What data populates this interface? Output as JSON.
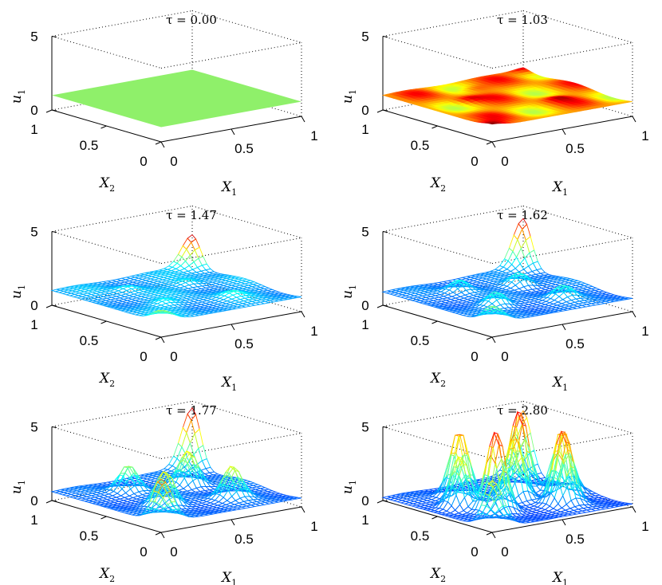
{
  "figure_description_free": true,
  "chart_data": [
    {
      "type": "surface",
      "title": "τ = 0.00",
      "tau": 0.0,
      "xlabel": "X",
      "xlabel_sub": "1",
      "ylabel": "X",
      "ylabel_sub": "2",
      "zlabel": "u",
      "zlabel_sub": "1",
      "xlim": [
        0,
        1
      ],
      "ylim": [
        0,
        1
      ],
      "zlim": [
        0,
        5
      ],
      "x_ticks": [
        "0",
        "0.5",
        "1"
      ],
      "y_ticks": [
        "0",
        "0.5",
        "1"
      ],
      "z_ticks": [
        "0",
        "5"
      ],
      "base_level": 1,
      "max_value": 1,
      "style": "flat",
      "bumps": []
    },
    {
      "type": "surface",
      "title": "τ = 1.03",
      "tau": 1.03,
      "xlabel": "X",
      "xlabel_sub": "1",
      "ylabel": "X",
      "ylabel_sub": "2",
      "zlabel": "u",
      "zlabel_sub": "1",
      "xlim": [
        0,
        1
      ],
      "ylim": [
        0,
        1
      ],
      "zlim": [
        0,
        5
      ],
      "x_ticks": [
        "0",
        "0.5",
        "1"
      ],
      "y_ticks": [
        "0",
        "0.5",
        "1"
      ],
      "z_ticks": [
        "0",
        "5"
      ],
      "base_level": 1,
      "max_value": 1.2,
      "style": "dense",
      "bumps": [
        [
          0.0,
          0.0,
          0.2
        ],
        [
          1.0,
          1.0,
          0.2
        ],
        [
          0.3,
          0.6,
          0.12
        ],
        [
          0.7,
          0.3,
          0.12
        ],
        [
          0.5,
          0.8,
          0.1
        ]
      ]
    },
    {
      "type": "surface",
      "title": "τ = 1.47",
      "tau": 1.47,
      "xlabel": "X",
      "xlabel_sub": "1",
      "ylabel": "X",
      "ylabel_sub": "2",
      "zlabel": "u",
      "zlabel_sub": "1",
      "xlim": [
        0,
        1
      ],
      "ylim": [
        0,
        1
      ],
      "zlim": [
        0,
        5
      ],
      "x_ticks": [
        "0",
        "0.5",
        "1"
      ],
      "y_ticks": [
        "0",
        "0.5",
        "1"
      ],
      "z_ticks": [
        "0",
        "5"
      ],
      "base_level": 1,
      "max_value": 3.1,
      "style": "mesh",
      "bumps": [
        [
          1.0,
          1.0,
          2.1
        ],
        [
          0.0,
          0.0,
          0.8
        ],
        [
          0.3,
          0.35,
          0.3
        ],
        [
          0.7,
          0.65,
          0.3
        ],
        [
          0.35,
          0.75,
          0.3
        ],
        [
          0.7,
          0.25,
          0.3
        ]
      ]
    },
    {
      "type": "surface",
      "title": "τ = 1.62",
      "tau": 1.62,
      "xlabel": "X",
      "xlabel_sub": "1",
      "ylabel": "X",
      "ylabel_sub": "2",
      "zlabel": "u",
      "zlabel_sub": "1",
      "xlim": [
        0,
        1
      ],
      "ylim": [
        0,
        1
      ],
      "zlim": [
        0,
        5
      ],
      "x_ticks": [
        "0",
        "0.5",
        "1"
      ],
      "y_ticks": [
        "0",
        "0.5",
        "1"
      ],
      "z_ticks": [
        "0",
        "5"
      ],
      "base_level": 0.9,
      "max_value": 4.2,
      "style": "mesh",
      "bumps": [
        [
          1.0,
          1.0,
          3.3
        ],
        [
          0.0,
          0.0,
          1.2
        ],
        [
          0.3,
          0.35,
          0.9
        ],
        [
          0.7,
          0.65,
          0.9
        ],
        [
          0.35,
          0.75,
          0.8
        ],
        [
          0.7,
          0.25,
          0.8
        ]
      ]
    },
    {
      "type": "surface",
      "title": "τ = 1.77",
      "tau": 1.77,
      "xlabel": "X",
      "xlabel_sub": "1",
      "ylabel": "X",
      "ylabel_sub": "2",
      "zlabel": "u",
      "zlabel_sub": "1",
      "xlim": [
        0,
        1
      ],
      "ylim": [
        0,
        1
      ],
      "zlim": [
        0,
        5
      ],
      "x_ticks": [
        "0",
        "0.5",
        "1"
      ],
      "y_ticks": [
        "0",
        "0.5",
        "1"
      ],
      "z_ticks": [
        "0",
        "5"
      ],
      "base_level": 0.6,
      "max_value": 4.6,
      "style": "mesh",
      "bumps": [
        [
          1.0,
          1.0,
          4.0
        ],
        [
          0.0,
          0.0,
          3.0
        ],
        [
          0.3,
          0.35,
          2.3
        ],
        [
          0.7,
          0.65,
          2.4
        ],
        [
          0.35,
          0.75,
          1.8
        ],
        [
          0.7,
          0.25,
          2.1
        ]
      ]
    },
    {
      "type": "surface",
      "title": "τ = 2.80",
      "tau": 2.8,
      "xlabel": "X",
      "xlabel_sub": "1",
      "ylabel": "X",
      "ylabel_sub": "2",
      "zlabel": "u",
      "zlabel_sub": "1",
      "xlim": [
        0,
        1
      ],
      "ylim": [
        0,
        1
      ],
      "zlim": [
        0,
        5
      ],
      "x_ticks": [
        "0",
        "0.5",
        "1"
      ],
      "y_ticks": [
        "0",
        "0.5",
        "1"
      ],
      "z_ticks": [
        "0",
        "5"
      ],
      "base_level": 0.2,
      "max_value": 6.0,
      "style": "mesh",
      "bumps": [
        [
          1.0,
          1.0,
          4.2
        ],
        [
          0.0,
          0.0,
          3.3
        ],
        [
          0.3,
          0.35,
          5.5
        ],
        [
          0.7,
          0.65,
          5.6
        ],
        [
          0.35,
          0.75,
          4.6
        ],
        [
          0.7,
          0.25,
          5.0
        ],
        [
          0.55,
          0.5,
          4.2
        ],
        [
          0.2,
          0.55,
          3.6
        ],
        [
          0.85,
          0.45,
          4.4
        ]
      ]
    }
  ]
}
